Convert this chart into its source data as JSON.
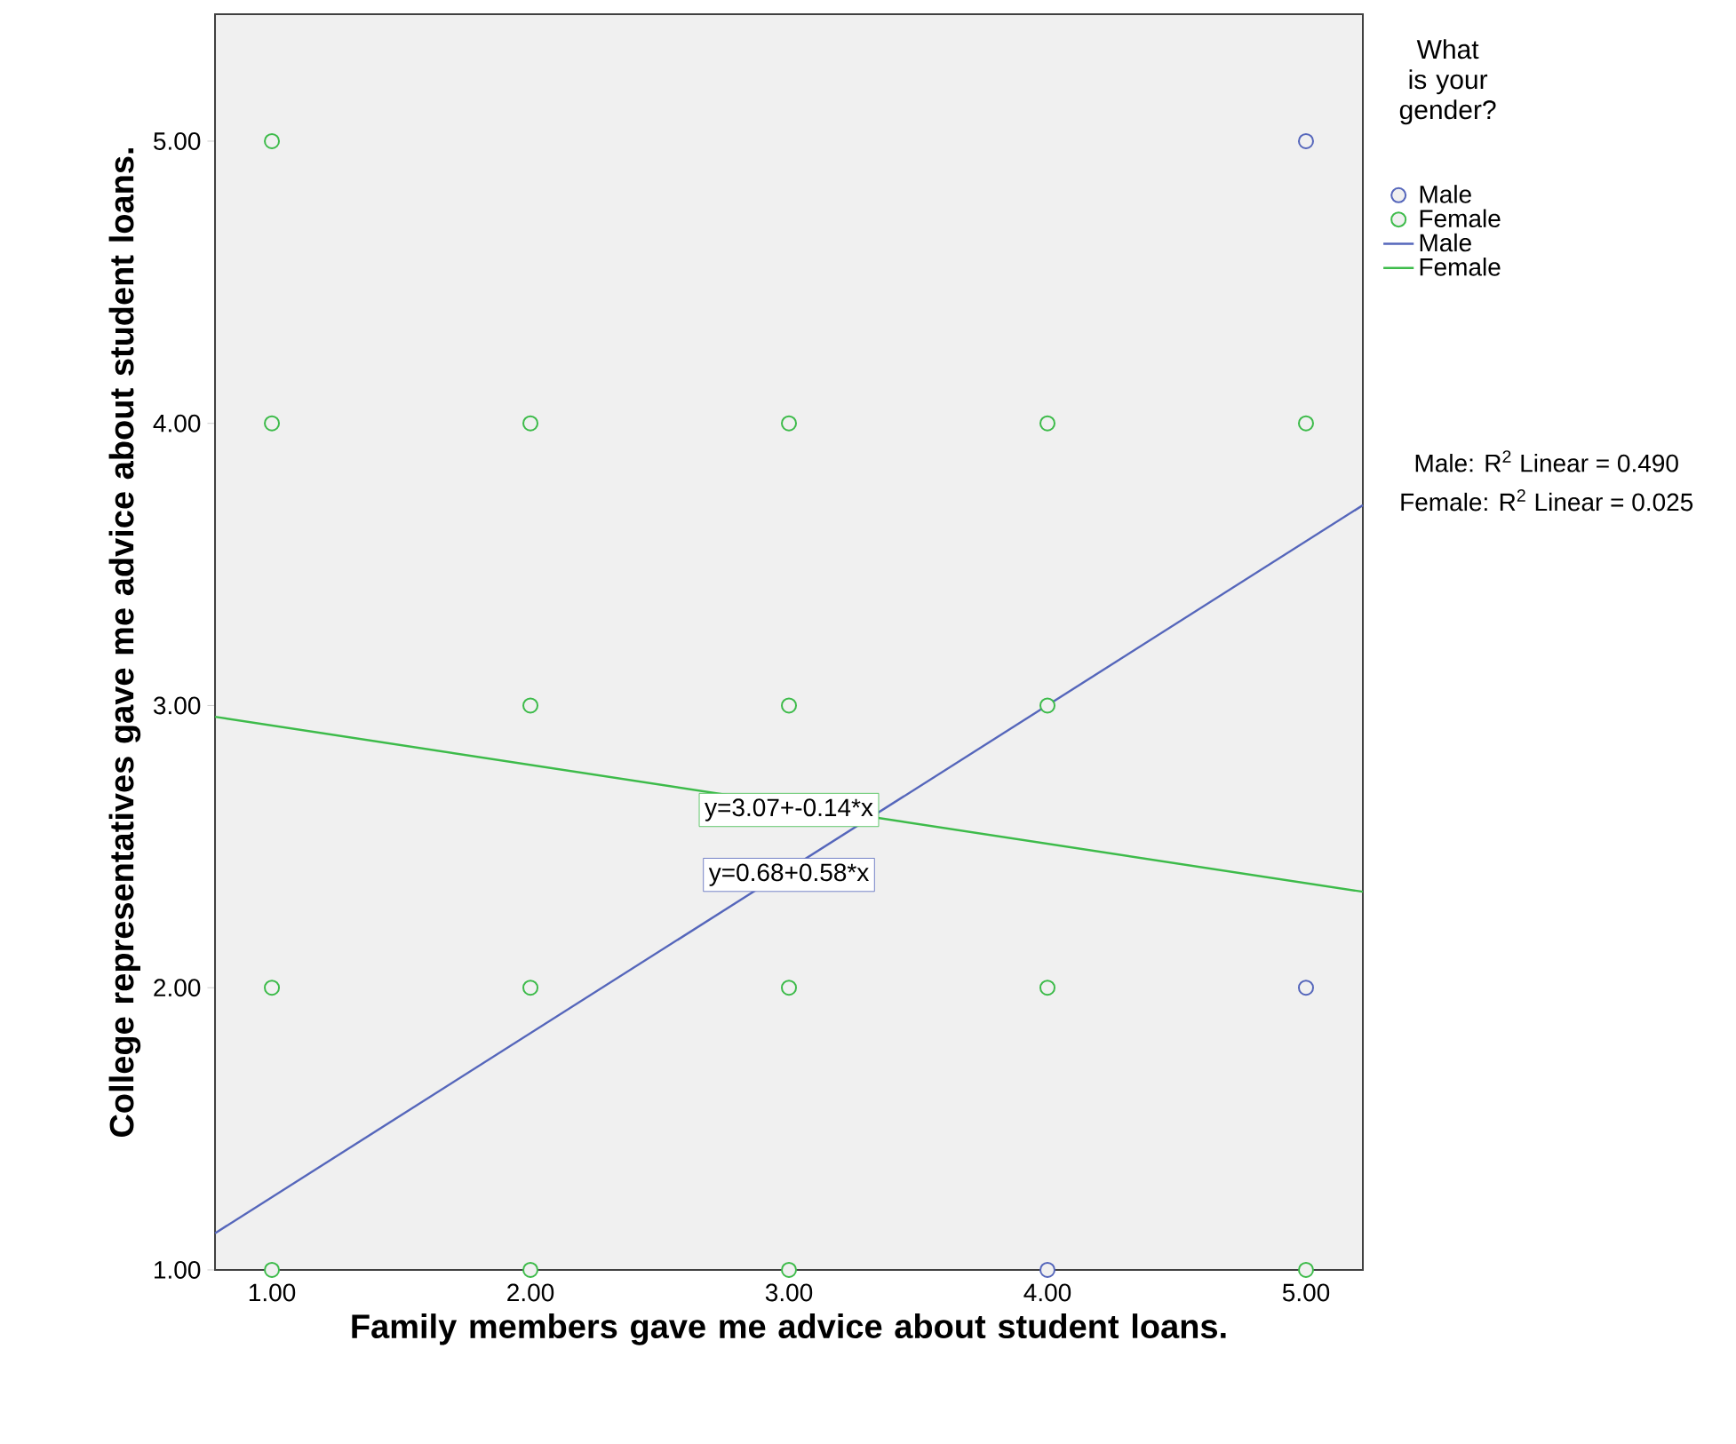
{
  "chart_data": {
    "type": "scatter",
    "xlabel": "Family members gave me advice about student loans.",
    "ylabel": "College representatives gave me advice about student loans.",
    "legend_title": "What is your gender?",
    "legend": "right",
    "grid": false,
    "xlim": [
      0.78,
      5.22
    ],
    "ylim": [
      1,
      5.45
    ],
    "xticks": [
      {
        "value": 1,
        "label": "1.00"
      },
      {
        "value": 2,
        "label": "2.00"
      },
      {
        "value": 3,
        "label": "3.00"
      },
      {
        "value": 4,
        "label": "4.00"
      },
      {
        "value": 5,
        "label": "5.00"
      }
    ],
    "yticks": [
      {
        "value": 1,
        "label": "1.00"
      },
      {
        "value": 2,
        "label": "2.00"
      },
      {
        "value": 3,
        "label": "3.00"
      },
      {
        "value": 4,
        "label": "4.00"
      },
      {
        "value": 5,
        "label": "5.00"
      }
    ],
    "series": [
      {
        "name": "Male",
        "marker": "circle",
        "color": "#5566bb",
        "x": [
          5,
          5,
          4
        ],
        "values": [
          5,
          2,
          1
        ]
      },
      {
        "name": "Female",
        "marker": "circle",
        "color": "#3dbb4a",
        "x": [
          1,
          1,
          1,
          1,
          2,
          2,
          2,
          2,
          3,
          3,
          3,
          3,
          4,
          4,
          4,
          5,
          5
        ],
        "values": [
          5,
          4,
          2,
          1,
          4,
          3,
          2,
          1,
          4,
          3,
          2,
          1,
          4,
          3,
          2,
          4,
          1
        ]
      },
      {
        "name": "Male",
        "type": "line",
        "marker": "none",
        "color": "#5566bb",
        "x": [
          0.78,
          5.22
        ],
        "values": [
          1.13,
          3.71
        ]
      },
      {
        "name": "Female",
        "type": "line",
        "marker": "none",
        "color": "#3dbb4a",
        "x": [
          0.78,
          5.22
        ],
        "values": [
          2.96,
          2.34
        ]
      }
    ],
    "annotations": [
      {
        "text": "y=0.68+0.58*x",
        "x": 3.0,
        "y": 2.4
      },
      {
        "text": "y=3.07+-0.14*x",
        "x": 3.0,
        "y": 2.63
      },
      "Male: R$^{2}$ Linear = 0.490",
      "Female: R$^{2}$ Linear = 0.025"
    ]
  }
}
